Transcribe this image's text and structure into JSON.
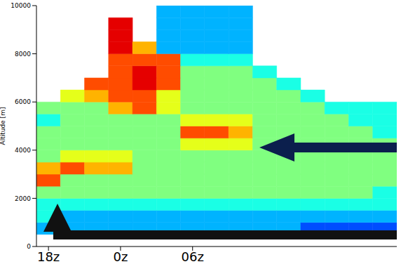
{
  "chart_data": {
    "type": "heatmap",
    "y_label": "Altitude [m]",
    "xlim": [
      17,
      47
    ],
    "xticks": [
      {
        "value": 18,
        "label": "18z"
      },
      {
        "value": 24,
        "label": "0z"
      },
      {
        "value": 30,
        "label": "06z"
      }
    ],
    "ylim": [
      0,
      10000
    ],
    "yticks": [
      0,
      2000,
      4000,
      6000,
      8000,
      10000
    ],
    "grid": false,
    "x_edges": [
      17,
      19,
      21,
      23,
      25,
      27,
      29,
      31,
      33,
      35,
      37,
      39,
      41,
      43,
      45,
      47
    ],
    "y_edges": [
      500,
      1000,
      1500,
      2000,
      2500,
      3000,
      3500,
      4000,
      4500,
      5000,
      5500,
      6000,
      6500,
      7000,
      7500,
      8000,
      8500,
      9000,
      9500,
      10000
    ],
    "clim": [
      0,
      10
    ],
    "cells": [
      [
        3,
        3,
        3,
        3,
        3,
        3,
        3,
        3,
        3,
        3,
        3,
        2,
        2,
        2,
        2
      ],
      [
        4,
        3,
        3,
        3,
        3,
        3,
        3,
        3,
        3,
        3,
        3,
        3,
        3,
        3,
        3
      ],
      [
        4,
        4,
        4,
        4,
        4,
        4,
        4,
        4,
        4,
        4,
        4,
        4,
        4,
        4,
        4
      ],
      [
        5,
        5,
        5,
        5,
        5,
        5,
        5,
        5,
        5,
        5,
        5,
        5,
        5,
        5,
        4
      ],
      [
        8,
        5,
        5,
        5,
        5,
        5,
        5,
        5,
        5,
        5,
        5,
        5,
        5,
        5,
        5
      ],
      [
        7,
        8,
        7,
        7,
        5,
        5,
        5,
        5,
        5,
        5,
        5,
        5,
        5,
        5,
        5
      ],
      [
        5,
        6,
        6,
        6,
        5,
        5,
        5,
        5,
        5,
        5,
        5,
        5,
        5,
        5,
        5
      ],
      [
        5,
        5,
        5,
        5,
        5,
        5,
        6,
        6,
        6,
        5,
        5,
        5,
        5,
        5,
        5
      ],
      [
        5,
        5,
        5,
        5,
        5,
        5,
        8,
        8,
        7,
        5,
        5,
        5,
        5,
        5,
        4
      ],
      [
        4,
        5,
        5,
        5,
        5,
        5,
        6,
        6,
        6,
        5,
        5,
        5,
        5,
        4,
        4
      ],
      [
        5,
        5,
        5,
        7,
        8,
        6,
        5,
        5,
        5,
        5,
        5,
        5,
        4,
        4,
        4
      ],
      [
        null,
        6,
        7,
        8,
        8,
        6,
        5,
        5,
        5,
        5,
        5,
        4,
        null,
        null,
        null
      ],
      [
        null,
        null,
        8,
        8,
        9,
        8,
        5,
        5,
        5,
        5,
        4,
        null,
        null,
        null,
        null
      ],
      [
        null,
        null,
        null,
        8,
        9,
        8,
        5,
        5,
        5,
        4,
        null,
        null,
        null,
        null,
        null
      ],
      [
        null,
        null,
        null,
        8,
        8,
        8,
        4,
        4,
        4,
        null,
        null,
        null,
        null,
        null,
        null
      ],
      [
        null,
        null,
        null,
        9,
        7,
        3,
        3,
        3,
        3,
        null,
        null,
        null,
        null,
        null,
        null
      ],
      [
        null,
        null,
        null,
        9,
        null,
        3,
        3,
        3,
        3,
        null,
        null,
        null,
        null,
        null,
        null
      ],
      [
        null,
        null,
        null,
        9,
        null,
        3,
        3,
        3,
        3,
        null,
        null,
        null,
        null,
        null,
        null
      ],
      [
        null,
        null,
        null,
        null,
        null,
        3,
        3,
        3,
        3,
        null,
        null,
        null,
        null,
        null,
        null
      ]
    ]
  }
}
